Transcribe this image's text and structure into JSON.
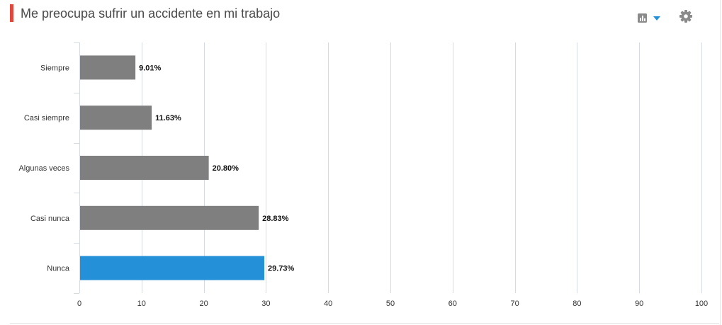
{
  "header": {
    "title": "Me preocupa sufrir un accidente en mi trabajo",
    "accent_color": "#e0473d",
    "chart_type_icon": "bar-chart-icon",
    "dropdown_icon": "caret-down-icon",
    "settings_icon": "gear-icon"
  },
  "colors": {
    "bar_default": "#7f7f7f",
    "bar_highlight": "#2390d8",
    "grid": "#d6dbe3",
    "dropdown_caret": "#2390d8",
    "icon": "#8a8a8a"
  },
  "chart_data": {
    "type": "bar",
    "orientation": "horizontal",
    "title": "",
    "xlabel": "",
    "ylabel": "",
    "categories": [
      "Siempre",
      "Casi siempre",
      "Algunas veces",
      "Casi nunca",
      "Nunca"
    ],
    "values": [
      9.01,
      11.63,
      20.8,
      28.83,
      29.73
    ],
    "value_labels": [
      "9.01%",
      "11.63%",
      "20.80%",
      "28.83%",
      "29.73%"
    ],
    "highlighted_category": "Nunca",
    "xlim": [
      0,
      100
    ],
    "xticks": [
      0,
      10,
      20,
      30,
      40,
      50,
      60,
      70,
      80,
      90,
      100
    ],
    "grid": true,
    "legend": "none"
  }
}
